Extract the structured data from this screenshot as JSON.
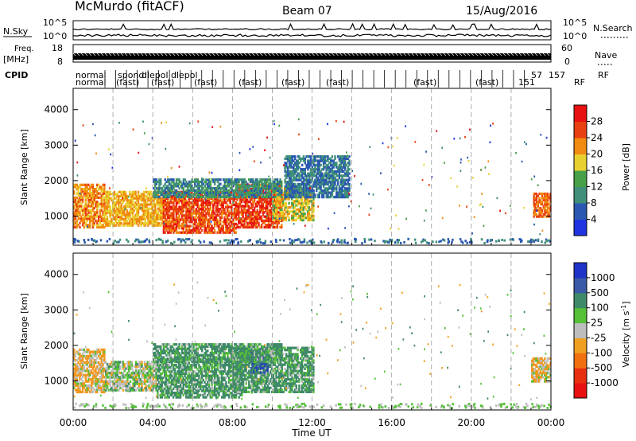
{
  "header": {
    "station": "McMurdo (fitACF)",
    "beam": "Beam 07",
    "date": "15/Aug/2016"
  },
  "left_labels": {
    "nsky": "N.Sky",
    "freq": "Freq.",
    "freq_unit": "[MHz]",
    "cpid": "CPID"
  },
  "right_labels": {
    "nsearch": "N.Search",
    "nave": "Nave"
  },
  "chart_data": [
    {
      "type": "line",
      "panel": "noise",
      "series": [
        {
          "name": "N.Sky",
          "style": "solid"
        },
        {
          "name": "N.Search",
          "style": "dotted"
        }
      ],
      "y_ticks_left": [
        "10^5",
        "10^0"
      ],
      "y_ticks_right": [
        "10^5",
        "10^0"
      ]
    },
    {
      "type": "line",
      "panel": "frequency",
      "y_ticks_left": [
        "18",
        "8"
      ],
      "y_ticks_right": [
        "60",
        "0"
      ]
    },
    {
      "type": "table",
      "panel": "cpid",
      "row1": [
        "normal",
        "spond",
        "dlepol",
        "dlepol",
        "57",
        "157",
        "RF"
      ],
      "row2": [
        "normal",
        "(fast)",
        "(fast)",
        "(fast)",
        "(fast)",
        "(fast)",
        "(fast)",
        "(fast)",
        "(fast)",
        "151",
        "RF"
      ]
    },
    {
      "type": "heatmap",
      "panel": "power",
      "xlabel": "",
      "ylabel": "Slant Range [km]",
      "x_ticks": [
        "00:00",
        "04:00",
        "08:00",
        "12:00",
        "16:00",
        "20:00",
        "00:00"
      ],
      "x_range_hours": [
        0,
        24
      ],
      "y_ticks": [
        1000,
        2000,
        3000,
        4000
      ],
      "y_range_km": [
        180,
        4600
      ],
      "colorbar": {
        "label": "Power [dB]",
        "ticks": [
          "4",
          "8",
          "12",
          "16",
          "20",
          "24",
          "28"
        ],
        "colors": [
          "#1f33e0",
          "#2a58b0",
          "#3f8f7a",
          "#48a048",
          "#e8d030",
          "#f08a10",
          "#e84010",
          "#e81010"
        ]
      },
      "echo_regions": [
        {
          "t0": 0.0,
          "t1": 1.6,
          "r0": 650,
          "r1": 1900,
          "level": 22
        },
        {
          "t0": 1.6,
          "t1": 4.5,
          "r0": 700,
          "r1": 1700,
          "level": 20
        },
        {
          "t0": 4.5,
          "t1": 8.2,
          "r0": 500,
          "r1": 1700,
          "level": 26
        },
        {
          "t0": 8.2,
          "t1": 10.5,
          "r0": 650,
          "r1": 1900,
          "level": 27
        },
        {
          "t0": 10.0,
          "t1": 12.1,
          "r0": 850,
          "r1": 1800,
          "level": 18
        },
        {
          "t0": 4.0,
          "t1": 10.5,
          "r0": 1500,
          "r1": 2050,
          "level": 10
        },
        {
          "t0": 10.6,
          "t1": 13.9,
          "r0": 1500,
          "r1": 2700,
          "level": 8
        },
        {
          "t0": 23.1,
          "t1": 24.0,
          "r0": 950,
          "r1": 1650,
          "level": 24
        }
      ]
    },
    {
      "type": "heatmap",
      "panel": "velocity",
      "xlabel": "Time UT",
      "ylabel": "Slant Range [km]",
      "x_ticks": [
        "00:00",
        "04:00",
        "08:00",
        "12:00",
        "16:00",
        "20:00",
        "00:00"
      ],
      "x_range_hours": [
        0,
        24
      ],
      "y_ticks": [
        1000,
        2000,
        3000,
        4000
      ],
      "y_range_km": [
        180,
        4600
      ],
      "colorbar": {
        "label": "Velocity [m s^-1]",
        "unit_sup": "-1",
        "ticks": [
          "1000",
          "500",
          "100",
          "25",
          "-25",
          "-100",
          "-500",
          "-1000"
        ],
        "colors": [
          "#1f33c8",
          "#3a5aa8",
          "#3f8a68",
          "#55c038",
          "#bdbdbd",
          "#f0a020",
          "#f07010",
          "#e83010",
          "#e81010"
        ]
      },
      "echo_regions": [
        {
          "t0": 0.0,
          "t1": 1.6,
          "r0": 650,
          "r1": 1900,
          "class": "orange"
        },
        {
          "t0": 1.6,
          "t1": 4.2,
          "r0": 700,
          "r1": 1550,
          "class": "mixed"
        },
        {
          "t0": 4.2,
          "t1": 8.5,
          "r0": 500,
          "r1": 1650,
          "class": "green"
        },
        {
          "t0": 8.0,
          "t1": 12.1,
          "r0": 650,
          "r1": 1950,
          "class": "green"
        },
        {
          "t0": 8.9,
          "t1": 9.8,
          "r0": 1200,
          "r1": 1800,
          "class": "blue"
        },
        {
          "t0": 4.0,
          "t1": 10.5,
          "r0": 1500,
          "r1": 2050,
          "class": "green"
        },
        {
          "t0": 23.0,
          "t1": 24.0,
          "r0": 950,
          "r1": 1650,
          "class": "orange"
        }
      ]
    }
  ]
}
